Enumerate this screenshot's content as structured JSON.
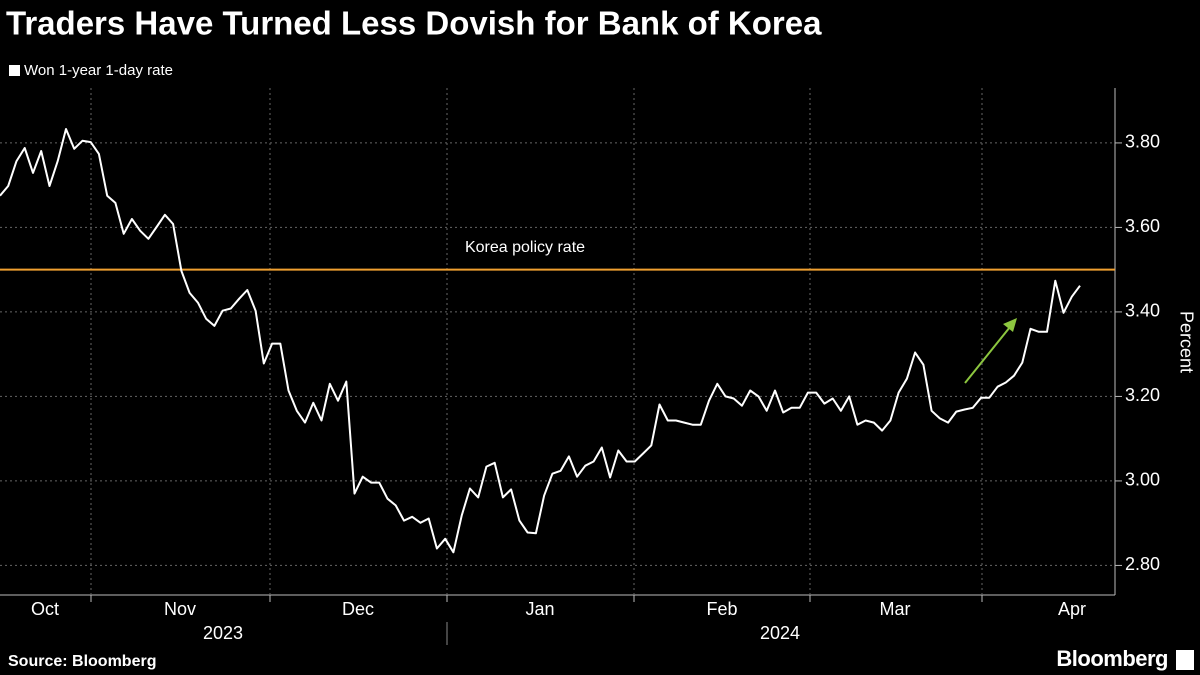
{
  "chart_data": {
    "type": "line",
    "title": "Traders Have Turned Less Dovish for Bank of Korea",
    "source": "Source: Bloomberg",
    "brand": "Bloomberg",
    "y_label": "Percent",
    "month_labels": [
      "Oct",
      "Nov",
      "Dec",
      "Jan",
      "Feb",
      "Mar",
      "Apr"
    ],
    "year_labels": [
      "2023",
      "2024"
    ],
    "ylim": [
      2.73,
      3.93
    ],
    "yticks": [
      {
        "value": 2.8,
        "label": "2.80"
      },
      {
        "value": 3.0,
        "label": "3.00"
      },
      {
        "value": 3.2,
        "label": "3.20"
      },
      {
        "value": 3.4,
        "label": "3.40"
      },
      {
        "value": 3.6,
        "label": "3.60"
      },
      {
        "value": 3.8,
        "label": "3.80"
      }
    ],
    "grid": true,
    "reference_line": {
      "label": "Korea policy rate",
      "value": 3.5,
      "color": "#f0a030"
    },
    "series": [
      {
        "name": "Won 1-year 1-day rate",
        "color": "#ffffff",
        "values": [
          3.675,
          3.698,
          3.757,
          3.788,
          3.729,
          3.781,
          3.698,
          3.757,
          3.833,
          3.786,
          3.805,
          3.802,
          3.774,
          3.675,
          3.658,
          3.585,
          3.62,
          3.592,
          3.573,
          3.601,
          3.63,
          3.608,
          3.497,
          3.445,
          3.422,
          3.384,
          3.367,
          3.403,
          3.408,
          3.431,
          3.452,
          3.403,
          3.278,
          3.325,
          3.325,
          3.214,
          3.166,
          3.138,
          3.185,
          3.143,
          3.23,
          3.19,
          3.235,
          2.97,
          3.01,
          2.996,
          2.996,
          2.958,
          2.942,
          2.906,
          2.915,
          2.901,
          2.911,
          2.84,
          2.863,
          2.831,
          2.918,
          2.982,
          2.961,
          3.034,
          3.043,
          2.961,
          2.98,
          2.906,
          2.878,
          2.876,
          2.965,
          3.017,
          3.024,
          3.058,
          3.01,
          3.036,
          3.046,
          3.079,
          3.008,
          3.072,
          3.046,
          3.046,
          3.065,
          3.084,
          3.181,
          3.143,
          3.143,
          3.138,
          3.133,
          3.133,
          3.19,
          3.23,
          3.2,
          3.195,
          3.178,
          3.214,
          3.2,
          3.166,
          3.214,
          3.162,
          3.173,
          3.173,
          3.209,
          3.209,
          3.183,
          3.195,
          3.166,
          3.2,
          3.133,
          3.143,
          3.138,
          3.119,
          3.143,
          3.209,
          3.242,
          3.304,
          3.275,
          3.166,
          3.148,
          3.138,
          3.164,
          3.169,
          3.173,
          3.197,
          3.197,
          3.223,
          3.233,
          3.249,
          3.28,
          3.36,
          3.353,
          3.353,
          3.474,
          3.398,
          3.436,
          3.462
        ]
      }
    ]
  }
}
